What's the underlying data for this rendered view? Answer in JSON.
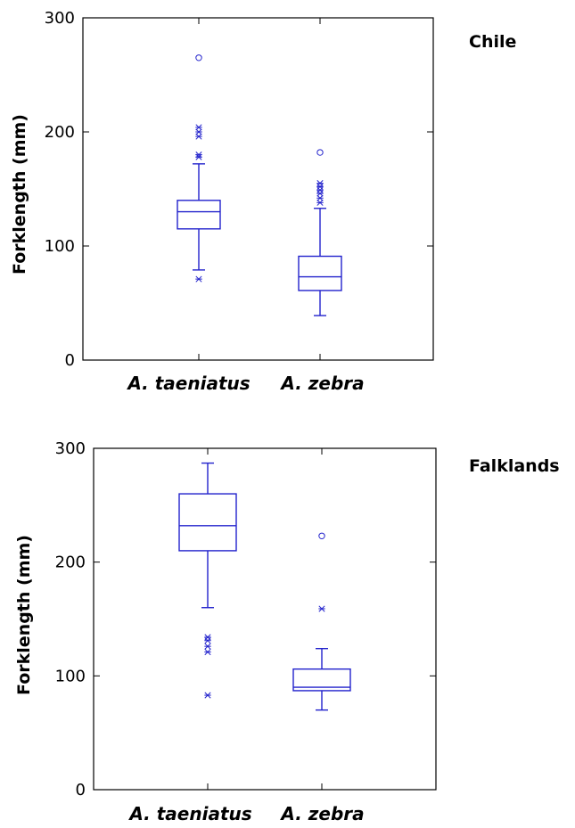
{
  "colors": {
    "box": "#2222cc",
    "axis": "#000000"
  },
  "chart_data": [
    {
      "type": "box",
      "title": "Chile",
      "ylabel": "Forklength (mm)",
      "ylim": [
        0,
        300
      ],
      "yticks": [
        0,
        100,
        200,
        300
      ],
      "categories": [
        "A. taeniatus",
        "A. zebra"
      ],
      "boxes": [
        {
          "category": "A. taeniatus",
          "whisker_low": 79,
          "q1": 115,
          "median": 130,
          "q3": 140,
          "whisker_high": 172,
          "outliers_star": [
            71,
            178,
            180,
            196,
            200,
            204
          ],
          "outliers_circle": [
            265
          ]
        },
        {
          "category": "A. zebra",
          "whisker_low": 39,
          "q1": 61,
          "median": 73,
          "q3": 91,
          "whisker_high": 133,
          "outliers_star": [
            138,
            142,
            146,
            149,
            152,
            155
          ],
          "outliers_circle": [
            182
          ]
        }
      ]
    },
    {
      "type": "box",
      "title": "Falklands",
      "ylabel": "Forklength (mm)",
      "ylim": [
        0,
        300
      ],
      "yticks": [
        0,
        100,
        200,
        300
      ],
      "categories": [
        "A. taeniatus",
        "A. zebra"
      ],
      "boxes": [
        {
          "category": "A. taeniatus",
          "whisker_low": 160,
          "q1": 210,
          "median": 232,
          "q3": 260,
          "whisker_high": 287,
          "outliers_star": [
            83,
            121,
            126,
            131,
            134
          ],
          "outliers_circle": []
        },
        {
          "category": "A. zebra",
          "whisker_low": 70,
          "q1": 87,
          "median": 90,
          "q3": 106,
          "whisker_high": 124,
          "outliers_star": [
            159
          ],
          "outliers_circle": [
            223
          ]
        }
      ]
    }
  ]
}
